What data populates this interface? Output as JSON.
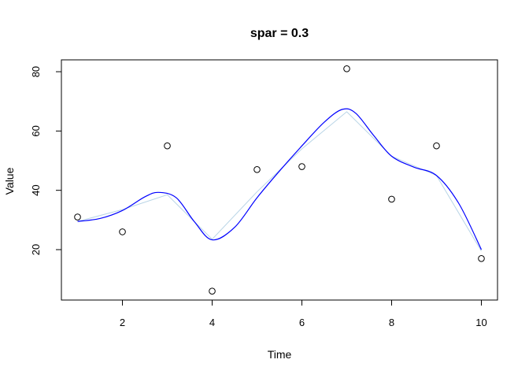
{
  "chart_data": {
    "type": "scatter",
    "title": "spar = 0.3",
    "xlabel": "Time",
    "ylabel": "Value",
    "xlim": [
      0.64,
      10.36
    ],
    "ylim": [
      3.0,
      84.0
    ],
    "xticks": [
      2,
      4,
      6,
      8,
      10
    ],
    "yticks": [
      20,
      40,
      60,
      80
    ],
    "points": {
      "x": [
        1,
        2,
        3,
        4,
        5,
        6,
        7,
        8,
        9,
        10
      ],
      "y": [
        31,
        26,
        55,
        6,
        47,
        48,
        81,
        37,
        55,
        17
      ]
    },
    "series": [
      {
        "style": "light-line",
        "color": "#b8d4e6",
        "x": [
          1,
          2,
          3,
          4,
          5,
          6,
          7,
          8,
          9,
          10
        ],
        "y": [
          29.5,
          33.5,
          38.5,
          23.5,
          39.5,
          54.0,
          66.5,
          51.5,
          45.0,
          19.5
        ]
      },
      {
        "style": "smooth-spline",
        "color": "#0000ff",
        "x": [
          1,
          1.5,
          2,
          2.5,
          2.8,
          3.2,
          3.6,
          4,
          4.5,
          5,
          5.5,
          6,
          6.5,
          6.9,
          7.2,
          7.6,
          8,
          8.5,
          9,
          9.5,
          10
        ],
        "y": [
          29.5,
          30.5,
          33.2,
          37.8,
          39.3,
          37.5,
          29.5,
          23.3,
          27.5,
          37.5,
          46.5,
          55.0,
          63.0,
          67.3,
          66.0,
          58.5,
          51.5,
          47.8,
          45.0,
          35.5,
          20.0
        ]
      }
    ]
  }
}
